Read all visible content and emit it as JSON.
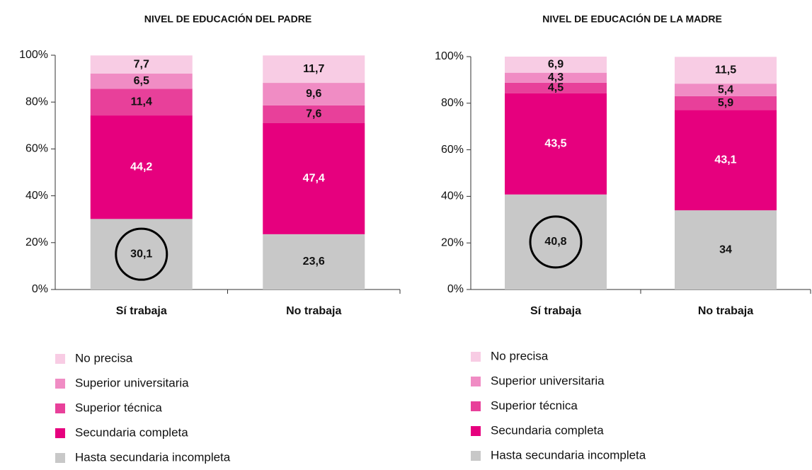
{
  "chart_data": [
    {
      "type": "stacked_bar",
      "title": "NIVEL DE EDUCACIÓN DEL PADRE",
      "categories": [
        "Sí trabaja",
        "No trabaja"
      ],
      "ylim": [
        0,
        100
      ],
      "yticks": [
        {
          "value": 0,
          "label": "0%"
        },
        {
          "value": 20,
          "label": "20%"
        },
        {
          "value": 40,
          "label": "40%"
        },
        {
          "value": 60,
          "label": "60%"
        },
        {
          "value": 80,
          "label": "80%"
        },
        {
          "value": 100,
          "label": "100%"
        }
      ],
      "series": [
        {
          "name": "Hasta secundaria incompleta",
          "color": "#c8c8c8",
          "values": [
            30.1,
            23.6
          ],
          "value_labels": [
            "30,1",
            "23,6"
          ]
        },
        {
          "name": "Secundaria completa",
          "color": "#e6007e",
          "values": [
            44.2,
            47.4
          ],
          "value_labels": [
            "44,2",
            "47,4"
          ]
        },
        {
          "name": "Superior técnica",
          "color": "#e8409a",
          "values": [
            11.4,
            7.6
          ],
          "value_labels": [
            "11,4",
            "7,6"
          ]
        },
        {
          "name": "Superior universitaria",
          "color": "#f08cc4",
          "values": [
            6.5,
            9.6
          ],
          "value_labels": [
            "6,5",
            "9,6"
          ]
        },
        {
          "name": "No precisa",
          "color": "#f8cce4",
          "values": [
            7.7,
            11.7
          ],
          "value_labels": [
            "7,7",
            "11,7"
          ]
        }
      ]
    },
    {
      "type": "stacked_bar",
      "title": "NIVEL DE EDUCACIÓN DE LA MADRE",
      "categories": [
        "Sí trabaja",
        "No trabaja"
      ],
      "ylim": [
        0,
        100
      ],
      "yticks": [
        {
          "value": 0,
          "label": "0%"
        },
        {
          "value": 20,
          "label": "20%"
        },
        {
          "value": 40,
          "label": "40%"
        },
        {
          "value": 60,
          "label": "60%"
        },
        {
          "value": 80,
          "label": "80%"
        },
        {
          "value": 100,
          "label": "100%"
        }
      ],
      "series": [
        {
          "name": "Hasta secundaria incompleta",
          "color": "#c8c8c8",
          "values": [
            40.8,
            34
          ],
          "value_labels": [
            "40,8",
            "34"
          ]
        },
        {
          "name": "Secundaria completa",
          "color": "#e6007e",
          "values": [
            43.5,
            43.1
          ],
          "value_labels": [
            "43,5",
            "43,1"
          ]
        },
        {
          "name": "Superior técnica",
          "color": "#e8409a",
          "values": [
            4.5,
            5.9
          ],
          "value_labels": [
            "4,5",
            "5,9"
          ]
        },
        {
          "name": "Superior universitaria",
          "color": "#f08cc4",
          "values": [
            4.3,
            5.4
          ],
          "value_labels": [
            "4,3",
            "5,4"
          ]
        },
        {
          "name": "No precisa",
          "color": "#f8cce4",
          "values": [
            6.9,
            11.5
          ],
          "value_labels": [
            "6,9",
            "11,5"
          ]
        }
      ]
    }
  ]
}
